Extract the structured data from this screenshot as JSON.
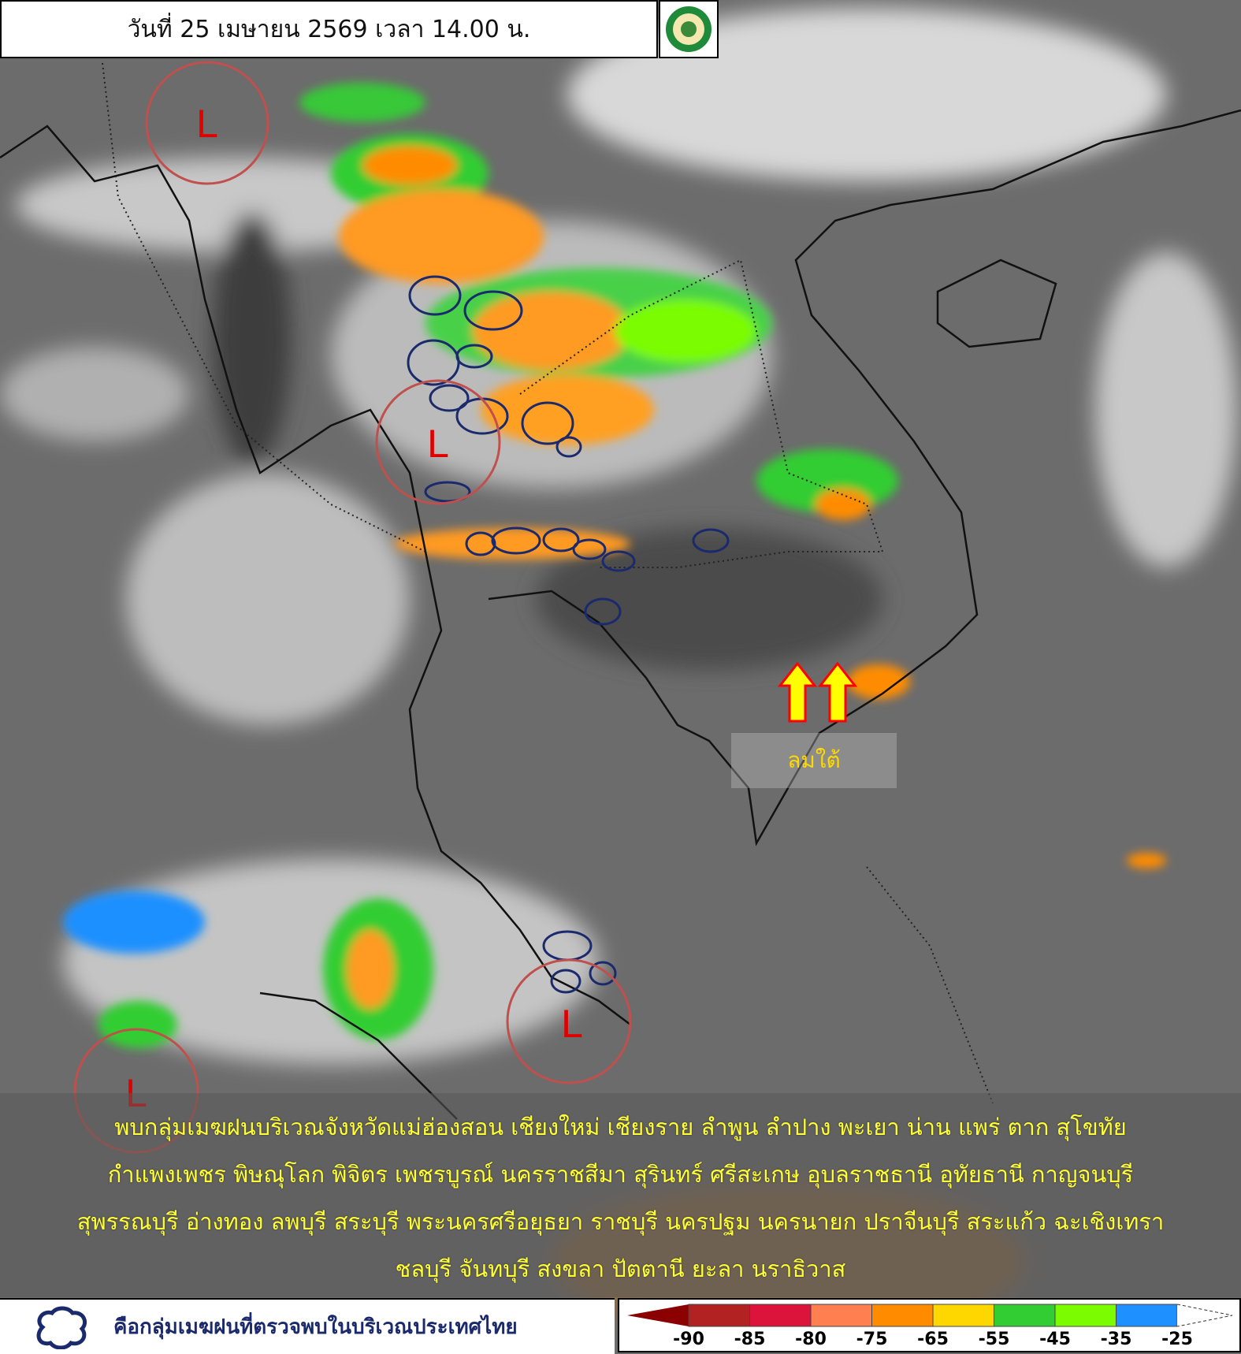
{
  "header": {
    "title": "วันที่ 25 เมษายน 2569 เวลา 14.00 น.",
    "logo": "Thai Meteorological Department seal"
  },
  "map": {
    "low_pressure_marker": "L",
    "low_pressure_count": 4,
    "wind_arrow_label": "ลมใต้",
    "colors": {
      "low_circle": "#c0504d",
      "low_letter": "#e00000",
      "arrow_fill": "#ffff00",
      "arrow_stroke": "#ff0000",
      "storm_outline": "#1a2a6c"
    }
  },
  "caption": {
    "lines": [
      "พบกลุ่มเมฆฝนบริเวณจังหวัดแม่ฮ่องสอน เชียงใหม่ เชียงราย ลำพูน ลำปาง พะเยา น่าน แพร่ ตาก สุโขทัย",
      "กำแพงเพชร พิษณุโลก พิจิตร เพชรบูรณ์ นครราชสีมา สุรินทร์ ศรีสะเกษ อุบลราชธานี อุทัยธานี กาญจนบุรี",
      "สุพรรณบุรี อ่างทอง ลพบุรี สระบุรี พระนครศรีอยุธยา ราชบุรี นครปฐม นครนายก ปราจีนบุรี สระแก้ว ฉะเชิงเทรา",
      "ชลบุรี จันทบุรี สงขลา ปัตตานี ยะลา นราธิวาส"
    ]
  },
  "legend": {
    "storm_icon": "cloud-outline-icon",
    "storm_text": "คือกลุ่มเมฆฝนที่ตรวจพบในบริเวณประเทศไทย",
    "colorbar": {
      "colors": [
        "#8b0000",
        "#b22222",
        "#dc143c",
        "#ff7f50",
        "#ff8c00",
        "#ffd700",
        "#32cd32",
        "#7cfc00",
        "#1e90ff",
        "#ffffff"
      ],
      "ticks": [
        "-90",
        "-85",
        "-80",
        "-75",
        "-65",
        "-55",
        "-45",
        "-35",
        "-25"
      ]
    }
  }
}
